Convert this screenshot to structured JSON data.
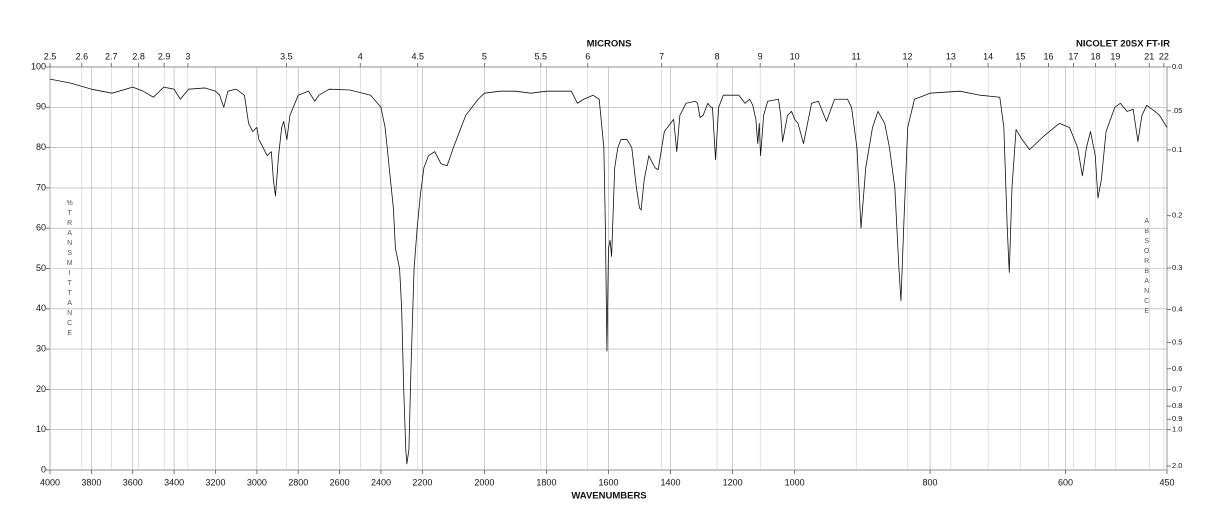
{
  "chart_data": {
    "type": "line",
    "title": "NICOLET 20SX FT-IR",
    "xlabel": "WAVENUMBERS",
    "x2label": "MICRONS",
    "ylabel": "%TRANSMITTANCE",
    "y2label": "ABSORBANCE",
    "color": "#111111",
    "grid": true,
    "xscale": "piecewise",
    "xbreaks": [
      2200,
      1000
    ],
    "xlim": [
      4000,
      450
    ],
    "xticks": [
      4000,
      3800,
      3600,
      3400,
      3200,
      3000,
      2800,
      2600,
      2400,
      2200,
      2000,
      1800,
      1600,
      1400,
      1200,
      1000,
      800,
      600,
      450
    ],
    "x2ticks": [
      2.5,
      2.6,
      2.7,
      2.8,
      2.9,
      3,
      3.5,
      4,
      4.5,
      5,
      5.5,
      6,
      7,
      8,
      9,
      10,
      11,
      12,
      13,
      14,
      15,
      16,
      17,
      18,
      19,
      21,
      22
    ],
    "ylim": [
      0,
      100
    ],
    "yticks": [
      0,
      10,
      20,
      30,
      40,
      50,
      60,
      70,
      80,
      90,
      100
    ],
    "y2ticks": [
      {
        "value": 0,
        "label": "0.0"
      },
      {
        "value": 0.05,
        "label": ".05"
      },
      0.1,
      0.2,
      0.3,
      0.4,
      0.5,
      0.6,
      0.7,
      0.8,
      0.9,
      {
        "value": 1,
        "label": "1.0"
      },
      {
        "value": 2,
        "label": "2.0"
      }
    ],
    "x": [
      4000,
      3900,
      3800,
      3700,
      3600,
      3550,
      3500,
      3450,
      3400,
      3370,
      3330,
      3250,
      3200,
      3180,
      3160,
      3140,
      3100,
      3060,
      3040,
      3020,
      3000,
      2990,
      2970,
      2950,
      2930,
      2920,
      2910,
      2895,
      2880,
      2870,
      2855,
      2840,
      2800,
      2750,
      2720,
      2700,
      2650,
      2550,
      2450,
      2400,
      2380,
      2360,
      2340,
      2330,
      2310,
      2300,
      2290,
      2280,
      2275,
      2265,
      2255,
      2240,
      2225,
      2210,
      2195,
      2180,
      2160,
      2140,
      2120,
      2100,
      2060,
      2020,
      2000,
      1950,
      1900,
      1850,
      1800,
      1720,
      1700,
      1680,
      1650,
      1630,
      1615,
      1610,
      1605,
      1600,
      1595,
      1590,
      1580,
      1570,
      1560,
      1540,
      1525,
      1510,
      1500,
      1495,
      1485,
      1470,
      1450,
      1440,
      1420,
      1400,
      1390,
      1380,
      1370,
      1350,
      1320,
      1313,
      1305,
      1295,
      1280,
      1270,
      1265,
      1255,
      1245,
      1230,
      1180,
      1160,
      1145,
      1135,
      1125,
      1119,
      1114,
      1110,
      1100,
      1087,
      1052,
      1045,
      1039,
      1023,
      1010,
      1000,
      995,
      987,
      975,
      965,
      953,
      941,
      922,
      916,
      908,
      902,
      895,
      885,
      877,
      867,
      860,
      852,
      846,
      843,
      839,
      833,
      823,
      800,
      756,
      726,
      697,
      691,
      686,
      683,
      679,
      673,
      664,
      653,
      631,
      609,
      594,
      582,
      575,
      569,
      563,
      556,
      552,
      547,
      540,
      527,
      519,
      509,
      500,
      496,
      493,
      487,
      480,
      468,
      461,
      450
    ],
    "values": [
      97,
      96,
      94.5,
      93.5,
      95,
      94,
      92.5,
      95,
      94.5,
      92,
      94.5,
      94.8,
      94,
      93,
      90,
      94,
      94.5,
      93,
      86,
      84,
      85,
      82,
      80,
      78,
      79,
      72,
      68,
      78,
      85,
      86.5,
      82,
      88,
      93,
      94,
      91.5,
      93,
      94.5,
      94.3,
      93,
      90,
      85,
      75,
      65,
      55,
      50,
      40,
      20,
      5,
      1.5,
      5,
      25,
      50,
      60,
      68,
      75,
      78,
      79,
      76,
      75.5,
      80,
      88,
      92,
      93.5,
      94,
      94,
      93.5,
      94,
      94,
      91,
      92,
      93,
      92,
      80,
      60,
      29.5,
      55,
      57,
      53,
      75,
      80,
      82,
      82,
      80,
      70,
      65,
      64.5,
      72,
      78,
      75,
      74.5,
      84,
      86,
      87,
      79,
      88,
      91,
      91.5,
      91,
      87.5,
      88,
      91,
      90,
      90,
      77,
      90,
      93,
      93,
      91,
      92,
      90.5,
      87,
      81,
      86,
      78,
      88,
      91.5,
      92,
      88,
      81.5,
      88,
      89,
      87,
      86,
      81,
      91,
      91.5,
      86.5,
      92,
      92,
      90,
      80,
      60,
      75,
      85,
      89,
      86,
      80,
      70,
      50,
      42,
      60,
      85,
      92,
      93.5,
      94,
      93,
      92.5,
      85,
      60,
      49,
      70,
      84.5,
      82,
      79.5,
      83,
      86,
      85,
      80,
      73,
      80,
      84,
      78,
      67.5,
      72,
      84,
      90,
      91,
      89,
      89.5,
      85,
      81.5,
      88,
      90.5,
      89,
      88,
      85
    ]
  }
}
